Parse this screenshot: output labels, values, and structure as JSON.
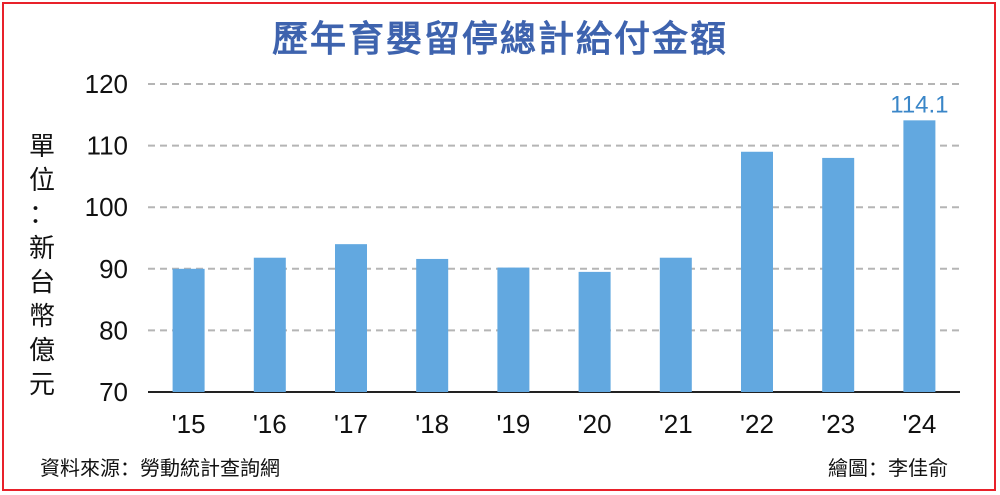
{
  "chart_data": {
    "type": "bar",
    "title": "歷年育嬰留停總計給付金額",
    "ylabel": "單位：新台幣億元",
    "categories": [
      "'15",
      "'16",
      "'17",
      "'18",
      "'19",
      "'20",
      "'21",
      "'22",
      "'23",
      "'24"
    ],
    "values": [
      90,
      91.8,
      94,
      91.6,
      90.2,
      89.5,
      91.8,
      109,
      108,
      114.1
    ],
    "ylim": [
      70,
      120
    ],
    "yticks": [
      70,
      80,
      90,
      100,
      110,
      120
    ],
    "data_labels": [
      null,
      null,
      null,
      null,
      null,
      null,
      null,
      null,
      null,
      "114.1"
    ],
    "grid": true,
    "bar_color": "#62a8e0"
  },
  "footer": {
    "source": "資料來源：勞動統計查詢網",
    "credit": "繪圖：李佳俞"
  },
  "colors": {
    "title": "#3e63ae",
    "border": "#e8212a",
    "label": "#3a86c8"
  }
}
